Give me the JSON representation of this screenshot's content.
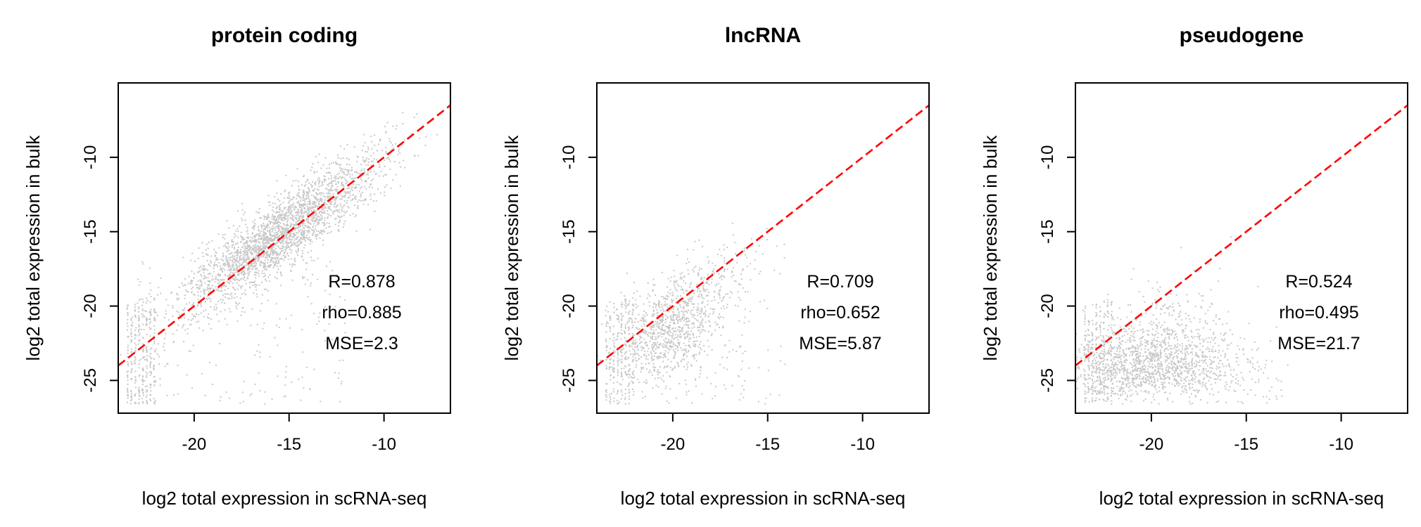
{
  "chart_data": [
    {
      "type": "scatter",
      "title": "protein coding",
      "xlabel": "log2 total expression in scRNA-seq",
      "ylabel": "log2 total expression in bulk",
      "xlim": [
        -24,
        -6.5
      ],
      "ylim": [
        -27.2,
        -5
      ],
      "xticks": [
        -20,
        -15,
        -10
      ],
      "yticks": [
        -25,
        -20,
        -15,
        -10
      ],
      "reference_line": {
        "slope": 1,
        "intercept": 0,
        "color": "#ff0000",
        "style": "dashed"
      },
      "point_color": "#c8c8c8",
      "cloud": {
        "center_x": -15.5,
        "center_y": -15.5,
        "n_points": 2500,
        "trend": "along y=x, tight"
      },
      "stats": [
        "R=0.878",
        "rho=0.885",
        "MSE=2.3"
      ]
    },
    {
      "type": "scatter",
      "title": "lncRNA",
      "xlabel": "log2 total expression in scRNA-seq",
      "ylabel": "log2 total expression in bulk",
      "xlim": [
        -24,
        -6.5
      ],
      "ylim": [
        -27.2,
        -5
      ],
      "xticks": [
        -20,
        -15,
        -10
      ],
      "yticks": [
        -25,
        -20,
        -15,
        -10
      ],
      "reference_line": {
        "slope": 1,
        "intercept": 0,
        "color": "#ff0000",
        "style": "dashed"
      },
      "point_color": "#c8c8c8",
      "cloud": {
        "center_x": -21,
        "center_y": -22,
        "n_points": 1100,
        "trend": "along y=x, diffuse"
      },
      "stats": [
        "R=0.709",
        "rho=0.652",
        "MSE=5.87"
      ]
    },
    {
      "type": "scatter",
      "title": "pseudogene",
      "xlabel": "log2 total expression in scRNA-seq",
      "ylabel": "log2 total expression in bulk",
      "xlim": [
        -24,
        -6.5
      ],
      "ylim": [
        -27.2,
        -5
      ],
      "xticks": [
        -20,
        -15,
        -10
      ],
      "yticks": [
        -25,
        -20,
        -15,
        -10
      ],
      "reference_line": {
        "slope": 1,
        "intercept": 0,
        "color": "#ff0000",
        "style": "dashed"
      },
      "point_color": "#c8c8c8",
      "cloud": {
        "center_x": -19.5,
        "center_y": -24,
        "n_points": 1600,
        "trend": "below y=x, broad"
      },
      "stats": [
        "R=0.524",
        "rho=0.495",
        "MSE=21.7"
      ]
    }
  ]
}
